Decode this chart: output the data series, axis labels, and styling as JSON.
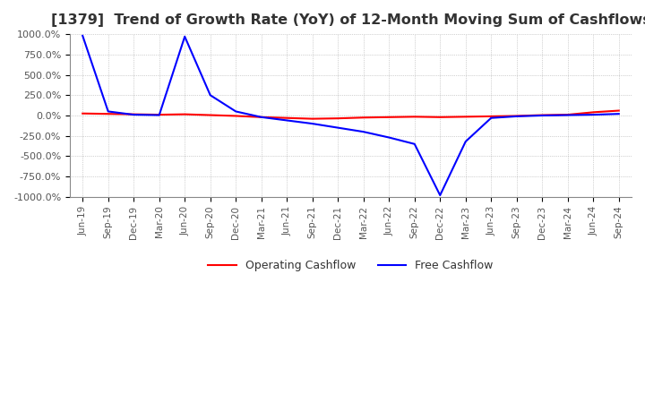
{
  "title": "[1379]  Trend of Growth Rate (YoY) of 12-Month Moving Sum of Cashflows",
  "title_fontsize": 11.5,
  "ylim": [
    -1000,
    1000
  ],
  "yticks": [
    -1000,
    -750,
    -500,
    -250,
    0,
    250,
    500,
    750,
    1000
  ],
  "ytick_labels": [
    "-1000.0%",
    "-750.0%",
    "-500.0%",
    "-250.0%",
    "0.0%",
    "250.0%",
    "500.0%",
    "750.0%",
    "1000.0%"
  ],
  "background_color": "#ffffff",
  "grid_color": "#aaaaaa",
  "operating_color": "#ff0000",
  "free_color": "#0000ff",
  "x_labels": [
    "Jun-19",
    "Sep-19",
    "Dec-19",
    "Mar-20",
    "Jun-20",
    "Sep-20",
    "Dec-20",
    "Mar-21",
    "Jun-21",
    "Sep-21",
    "Dec-21",
    "Mar-22",
    "Jun-22",
    "Sep-22",
    "Dec-22",
    "Mar-23",
    "Jun-23",
    "Sep-23",
    "Dec-23",
    "Mar-24",
    "Jun-24",
    "Sep-24"
  ],
  "operating_cashflow": [
    25,
    20,
    15,
    10,
    15,
    5,
    -5,
    -20,
    -30,
    -40,
    -35,
    -25,
    -20,
    -15,
    -20,
    -15,
    -10,
    -5,
    5,
    10,
    40,
    60
  ],
  "free_cashflow": [
    980,
    50,
    10,
    5,
    970,
    250,
    50,
    -20,
    -60,
    -100,
    -150,
    -200,
    -270,
    -350,
    -980,
    -320,
    -30,
    -10,
    0,
    5,
    10,
    20
  ]
}
